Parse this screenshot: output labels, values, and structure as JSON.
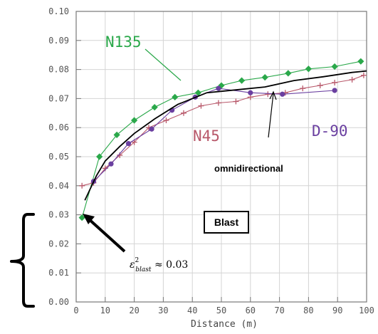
{
  "chart_data": {
    "type": "line",
    "xlabel": "Distance (m)",
    "ylabel": "",
    "xlim": [
      0,
      100
    ],
    "ylim": [
      0,
      0.1
    ],
    "x_ticks": [
      "0",
      "10",
      "20",
      "30",
      "40",
      "50",
      "60",
      "70",
      "80",
      "90",
      "100"
    ],
    "y_ticks": [
      "0.00",
      "0.01",
      "0.02",
      "0.03",
      "0.04",
      "0.05",
      "0.06",
      "0.07",
      "0.08",
      "0.09",
      "0.10"
    ],
    "grid": true,
    "series": [
      {
        "name": "N135",
        "color": "#2aa84a",
        "marker": "diamond",
        "x": [
          2,
          8,
          14,
          20,
          27,
          34,
          42,
          50,
          57,
          65,
          73,
          80,
          89,
          98
        ],
        "y": [
          0.029,
          0.05,
          0.0575,
          0.0625,
          0.067,
          0.0705,
          0.072,
          0.0745,
          0.0762,
          0.0773,
          0.0787,
          0.0802,
          0.081,
          0.0828
        ]
      },
      {
        "name": "N45",
        "color": "#b8586a",
        "marker": "plus",
        "x": [
          2,
          6,
          10,
          15,
          20,
          25,
          31,
          37,
          43,
          49,
          55,
          60,
          66,
          72,
          78,
          84,
          89,
          95,
          99
        ],
        "y": [
          0.04,
          0.041,
          0.046,
          0.0505,
          0.055,
          0.06,
          0.0625,
          0.065,
          0.0675,
          0.0685,
          0.069,
          0.0705,
          0.0715,
          0.072,
          0.0735,
          0.0745,
          0.0755,
          0.0765,
          0.078
        ]
      },
      {
        "name": "D-90",
        "color": "#6a3fa0",
        "marker": "circle",
        "x": [
          6,
          12,
          18,
          26,
          33,
          41,
          49,
          60,
          71,
          89
        ],
        "y": [
          0.0415,
          0.0475,
          0.0545,
          0.0595,
          0.066,
          0.0705,
          0.0735,
          0.072,
          0.0715,
          0.0728
        ]
      },
      {
        "name": "omnidirectional",
        "color": "#000000",
        "marker": "none",
        "x": [
          3,
          7,
          10,
          15,
          20,
          27,
          35,
          45,
          55,
          65,
          75,
          85,
          95,
          100
        ],
        "y": [
          0.035,
          0.0435,
          0.0485,
          0.0535,
          0.058,
          0.063,
          0.068,
          0.072,
          0.073,
          0.074,
          0.0762,
          0.0775,
          0.079,
          0.0795
        ]
      }
    ],
    "annotations": {
      "n135": "N135",
      "n45": "N45",
      "d90": "D-90",
      "omni": "omnidirectional",
      "blast": "Blast",
      "epsilon": "ε",
      "epsilon_sup": "2",
      "epsilon_sub": "blast",
      "epsilon_rest": " ≈ 0.03"
    }
  }
}
